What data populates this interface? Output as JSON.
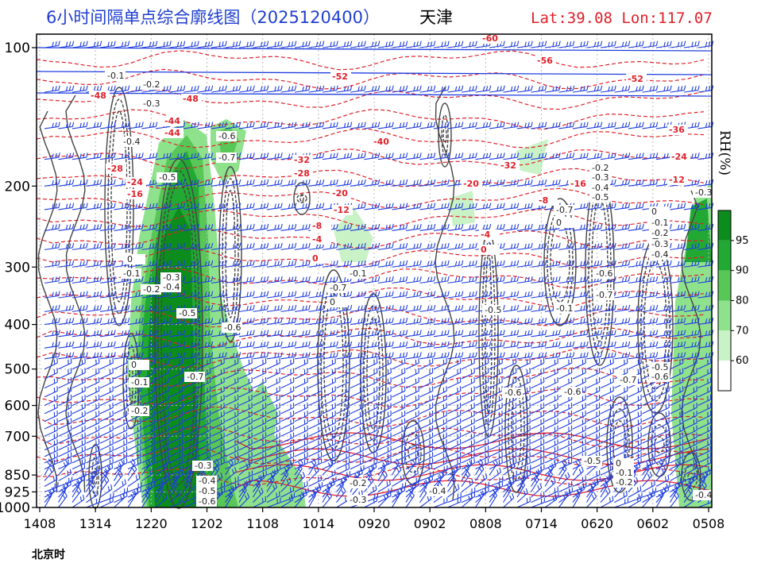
{
  "title": {
    "left": "6小时间隔单点综合廓线图（2025120400）",
    "city": "天津",
    "location": "Lat:39.08  Lon:117.07"
  },
  "chart_data": {
    "type": "heatmap",
    "x_label": "北京时",
    "x_ticks": [
      "1408",
      "1314",
      "1220",
      "1202",
      "1108",
      "1014",
      "0920",
      "0902",
      "0808",
      "0714",
      "0620",
      "0602",
      "0508"
    ],
    "y_ticks": [
      "100",
      "200",
      "300",
      "400",
      "500",
      "600",
      "700",
      "850",
      "925",
      "1000"
    ],
    "y_levels_hpa": [
      100,
      200,
      300,
      400,
      500,
      600,
      700,
      850,
      925,
      1000
    ],
    "colorbar": {
      "label": "RH(%)",
      "ticks": [
        "95",
        "90",
        "80",
        "70",
        "60"
      ],
      "colors": [
        "#0c8c1c",
        "#21a933",
        "#58c758",
        "#8fe28c",
        "#c9f3c6",
        "#ffffff"
      ]
    },
    "temperature_labels": [
      "-60",
      "-56",
      "-52",
      "-52",
      "-48",
      "-48",
      "-44",
      "-44",
      "-40",
      "-36",
      "-32",
      "-32",
      "-28",
      "-28",
      "-24",
      "-24",
      "-20",
      "-20",
      "-16",
      "-16",
      "-12",
      "-12",
      "-8",
      "-8",
      "-4",
      "-4",
      "0",
      "0"
    ],
    "omega_labels": [
      "-0.1",
      "-0.2",
      "-0.3",
      "-0.4",
      "-0.5",
      "-0.6",
      "-0.7",
      "0"
    ],
    "colors": {
      "wind": "#1e3de0",
      "temperature_negative": "#e0202a",
      "omega": "#444444",
      "title_blue": "#1f3fd1",
      "title_red": "#e0202a"
    }
  }
}
